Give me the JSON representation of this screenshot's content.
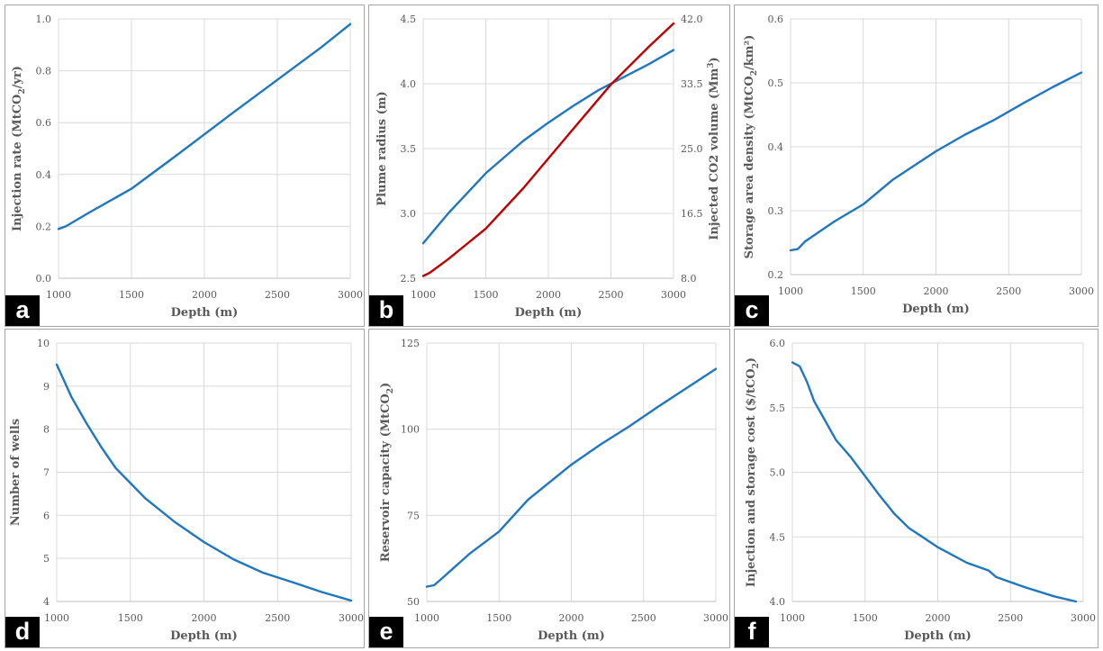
{
  "chart_data": [
    {
      "panel": "a",
      "type": "line",
      "xlabel": "Depth (m)",
      "ylabel": {
        "pre": "Injection rate (MtCO",
        "sub": "2",
        "post": "/yr)"
      },
      "xlim": [
        1000,
        3000
      ],
      "xticks": [
        1000,
        1500,
        2000,
        2500,
        3000
      ],
      "ylim": [
        0,
        1.0
      ],
      "yticks": [
        0.0,
        0.2,
        0.4,
        0.6,
        0.8,
        1.0
      ],
      "ydec": 1,
      "grid": true,
      "series": [
        {
          "color": "#1f77c0",
          "x": [
            1000,
            1050,
            1200,
            1500,
            1800,
            2000,
            2200,
            2500,
            2800,
            3000
          ],
          "y": [
            0.19,
            0.2,
            0.25,
            0.345,
            0.47,
            0.555,
            0.64,
            0.765,
            0.89,
            0.98
          ]
        }
      ]
    },
    {
      "panel": "b",
      "type": "line",
      "xlabel": "Depth (m)",
      "ylabel": {
        "pre": "Plume radius (m)",
        "sub": "",
        "post": "",
        "color": "#1f77c0"
      },
      "y2label": {
        "pre": "Injected CO2  volume (Mm",
        "sup": "3",
        "post": ")",
        "color": "#c00000"
      },
      "xlim": [
        1000,
        3000
      ],
      "xticks": [
        1000,
        1500,
        2000,
        2500,
        3000
      ],
      "ylim": [
        2.5,
        4.5
      ],
      "yticks": [
        2.5,
        3.0,
        3.5,
        4.0,
        4.5
      ],
      "ydec": 1,
      "y2lim": [
        8.0,
        42.0
      ],
      "y2ticks": [
        8.0,
        16.5,
        25.0,
        33.5,
        42.0
      ],
      "y2dec": 1,
      "grid": true,
      "series": [
        {
          "color": "#1f77c0",
          "axis": "left",
          "x": [
            1000,
            1200,
            1500,
            1800,
            2000,
            2200,
            2400,
            2600,
            2800,
            3000
          ],
          "y": [
            2.77,
            3.0,
            3.31,
            3.56,
            3.7,
            3.83,
            3.95,
            4.05,
            4.15,
            4.26
          ]
        },
        {
          "color": "#c00000",
          "axis": "right",
          "x": [
            1000,
            1050,
            1200,
            1500,
            1800,
            2000,
            2200,
            2500,
            2800,
            3000
          ],
          "y": [
            8.3,
            8.7,
            10.5,
            14.5,
            19.8,
            23.7,
            27.6,
            33.4,
            38.3,
            41.4
          ]
        }
      ]
    },
    {
      "panel": "c",
      "type": "line",
      "xlabel": "Depth (m)",
      "ylabel": {
        "pre": "Storage area density (MtCO",
        "sub": "2",
        "post": "/km²)"
      },
      "xlim": [
        1000,
        3000
      ],
      "xticks": [
        1000,
        1500,
        2000,
        2500,
        3000
      ],
      "ylim": [
        0.2,
        0.6
      ],
      "yticks": [
        0.2,
        0.3,
        0.4,
        0.5,
        0.6
      ],
      "ydec": 1,
      "grid": true,
      "series": [
        {
          "color": "#1f77c0",
          "x": [
            1000,
            1050,
            1100,
            1300,
            1500,
            1700,
            2000,
            2200,
            2400,
            2600,
            2800,
            3000
          ],
          "y": [
            0.238,
            0.24,
            0.252,
            0.283,
            0.31,
            0.348,
            0.393,
            0.419,
            0.442,
            0.468,
            0.493,
            0.516
          ]
        }
      ]
    },
    {
      "panel": "d",
      "type": "line",
      "xlabel": "Depth (m)",
      "ylabel": {
        "pre": "Number of wells",
        "sub": "",
        "post": ""
      },
      "xlim": [
        1000,
        3000
      ],
      "xticks": [
        1000,
        1500,
        2000,
        2500,
        3000
      ],
      "ylim": [
        4,
        10
      ],
      "yticks": [
        4,
        5,
        6,
        7,
        8,
        9,
        10
      ],
      "ydec": 0,
      "grid": true,
      "series": [
        {
          "color": "#1f77c0",
          "x": [
            1000,
            1100,
            1200,
            1300,
            1400,
            1500,
            1600,
            1800,
            2000,
            2200,
            2400,
            2600,
            2800,
            3000
          ],
          "y": [
            9.5,
            8.75,
            8.15,
            7.6,
            7.1,
            6.75,
            6.4,
            5.85,
            5.38,
            4.98,
            4.67,
            4.45,
            4.22,
            4.02
          ]
        }
      ]
    },
    {
      "panel": "e",
      "type": "line",
      "xlabel": "Depth (m)",
      "ylabel": {
        "pre": "Reservoir capacity (MtCO",
        "sub": "2",
        "post": ")"
      },
      "xlim": [
        1000,
        3000
      ],
      "xticks": [
        1000,
        1500,
        2000,
        2500,
        3000
      ],
      "ylim": [
        50,
        125
      ],
      "yticks": [
        50,
        75,
        100,
        125
      ],
      "ydec": 0,
      "grid": true,
      "series": [
        {
          "color": "#1f77c0",
          "x": [
            1000,
            1050,
            1100,
            1300,
            1500,
            1700,
            2000,
            2200,
            2400,
            2600,
            2800,
            3000
          ],
          "y": [
            54.3,
            54.7,
            56.5,
            64,
            70.3,
            79.5,
            89.7,
            95.5,
            100.8,
            106.5,
            112,
            117.5
          ]
        }
      ]
    },
    {
      "panel": "f",
      "type": "line",
      "xlabel": "Depth (m)",
      "ylabel": {
        "pre": "Injection and storage cost ($/tCO",
        "sub": "2",
        "post": ")"
      },
      "xlim": [
        1000,
        3000
      ],
      "xticks": [
        1000,
        1500,
        2000,
        2500,
        3000
      ],
      "ylim": [
        4.0,
        6.0
      ],
      "yticks": [
        4.0,
        4.5,
        5.0,
        5.5,
        6.0
      ],
      "ydec": 1,
      "grid": true,
      "series": [
        {
          "color": "#1f77c0",
          "x": [
            1000,
            1050,
            1100,
            1150,
            1200,
            1300,
            1400,
            1500,
            1600,
            1700,
            1800,
            2000,
            2200,
            2350,
            2400,
            2600,
            2800,
            2950
          ],
          "y": [
            5.85,
            5.82,
            5.7,
            5.55,
            5.45,
            5.25,
            5.12,
            4.97,
            4.82,
            4.68,
            4.57,
            4.42,
            4.3,
            4.24,
            4.19,
            4.11,
            4.04,
            4.0
          ]
        }
      ]
    }
  ]
}
